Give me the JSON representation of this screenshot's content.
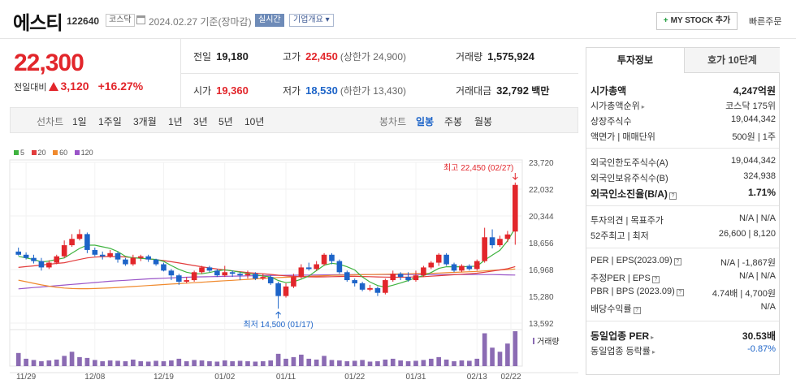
{
  "header": {
    "stock_name": "에스티",
    "code": "122640",
    "market": "코스닥",
    "date_label": "2024.02.27  기준(장마감)",
    "live_button": "실시간",
    "corp_button": "기업개요 ▾",
    "mystock_plus": "+",
    "mystock_button": "MY STOCK 추가",
    "quick_order": "빠른주문"
  },
  "price": {
    "current": "22,300",
    "change_label": "전일대비",
    "change": "3,120",
    "change_pct": "+16.27%"
  },
  "stats": {
    "prev_close_label": "전일",
    "prev_close": "19,180",
    "high_label": "고가",
    "high": "22,450",
    "upper_limit": "(상한가 24,900)",
    "volume_label": "거래량",
    "volume": "1,575,924",
    "open_label": "시가",
    "open": "19,360",
    "low_label": "저가",
    "low": "18,530",
    "lower_limit": "(하한가 13,430)",
    "amount_label": "거래대금",
    "amount": "32,792",
    "amount_unit": "백만"
  },
  "toolbar": {
    "line_chart_label": "선차트",
    "line_periods": [
      "1일",
      "1주일",
      "3개월",
      "1년",
      "3년",
      "5년",
      "10년"
    ],
    "candle_label": "봉차트",
    "candle_periods": [
      "일봉",
      "주봉",
      "월봉"
    ],
    "candle_selected": "일봉"
  },
  "legend": [
    {
      "label": "5",
      "color": "#3fb33f"
    },
    {
      "label": "20",
      "color": "#e23c3c"
    },
    {
      "label": "60",
      "color": "#f08a2e"
    },
    {
      "label": "120",
      "color": "#9a55c8"
    }
  ],
  "chart_data": {
    "type": "candlestick",
    "y_ticks": [
      "23,720",
      "22,032",
      "20,344",
      "18,656",
      "16,968",
      "15,280",
      "13,592"
    ],
    "x_ticks": [
      "11/29",
      "12/08",
      "12/19",
      "01/02",
      "01/11",
      "01/22",
      "01/31",
      "02/13",
      "02/22"
    ],
    "ylim": [
      13592,
      23720
    ],
    "high_annotation": "최고 22,450 (02/27)",
    "low_annotation": "최저 14,500 (01/17)",
    "volume_label": "거래량",
    "up_color": "#e2262b",
    "down_color": "#1d64c8",
    "candles": [
      [
        18100,
        17900,
        18350,
        17850
      ],
      [
        17900,
        17700,
        18050,
        17600
      ],
      [
        17700,
        17500,
        17900,
        17350
      ],
      [
        17500,
        17100,
        17700,
        16900
      ],
      [
        17100,
        17400,
        17550,
        17000
      ],
      [
        17400,
        17800,
        17900,
        17300
      ],
      [
        17800,
        18500,
        18800,
        17700
      ],
      [
        18500,
        18900,
        19200,
        18400
      ],
      [
        18900,
        19200,
        19500,
        18800
      ],
      [
        19200,
        18200,
        19300,
        18000
      ],
      [
        18200,
        17900,
        18350,
        17800
      ],
      [
        17900,
        17800,
        18100,
        17600
      ],
      [
        17800,
        18000,
        18200,
        17700
      ],
      [
        18000,
        17600,
        18100,
        17400
      ],
      [
        17600,
        17300,
        17700,
        17200
      ],
      [
        17300,
        17700,
        17900,
        17200
      ],
      [
        17700,
        17800,
        17900,
        17500
      ],
      [
        17800,
        17600,
        17900,
        17450
      ],
      [
        17600,
        17300,
        17650,
        17200
      ],
      [
        17300,
        16900,
        17400,
        16850
      ],
      [
        16900,
        16600,
        17000,
        16300
      ],
      [
        16600,
        16200,
        16700,
        16000
      ],
      [
        16200,
        16300,
        16500,
        16100
      ],
      [
        16300,
        16800,
        16900,
        16200
      ],
      [
        16800,
        17100,
        17200,
        16700
      ],
      [
        17100,
        16900,
        17200,
        16800
      ],
      [
        16900,
        16600,
        17000,
        16500
      ],
      [
        16600,
        16800,
        17200,
        16500
      ],
      [
        16800,
        16700,
        16900,
        16500
      ],
      [
        16700,
        16600,
        16800,
        16300
      ],
      [
        16600,
        16700,
        16900,
        16400
      ],
      [
        16700,
        16400,
        16800,
        16300
      ],
      [
        16400,
        16500,
        16700,
        16300
      ],
      [
        16500,
        16100,
        16600,
        16000
      ],
      [
        16100,
        15300,
        16200,
        14500
      ],
      [
        15300,
        15900,
        16100,
        15200
      ],
      [
        15900,
        16500,
        16700,
        15800
      ],
      [
        16500,
        17100,
        17300,
        16400
      ],
      [
        17100,
        17000,
        17400,
        16900
      ],
      [
        17000,
        17300,
        17500,
        16900
      ],
      [
        17300,
        17900,
        18000,
        17200
      ],
      [
        17900,
        17500,
        18000,
        17300
      ],
      [
        17500,
        16800,
        17600,
        16700
      ],
      [
        16800,
        16300,
        16900,
        16200
      ],
      [
        16300,
        16100,
        16400,
        15900
      ],
      [
        16100,
        15700,
        16200,
        15600
      ],
      [
        15700,
        15800,
        16000,
        15600
      ],
      [
        15800,
        15500,
        15900,
        15300
      ],
      [
        15500,
        16300,
        16400,
        15400
      ],
      [
        16300,
        16700,
        16900,
        16200
      ],
      [
        16700,
        16500,
        16800,
        16300
      ],
      [
        16500,
        16300,
        16800,
        16200
      ],
      [
        16300,
        16600,
        16900,
        16200
      ],
      [
        16600,
        17100,
        17200,
        16500
      ],
      [
        17100,
        17400,
        17500,
        17000
      ],
      [
        17400,
        17900,
        18000,
        17200
      ],
      [
        17900,
        17300,
        18000,
        17200
      ],
      [
        17300,
        16900,
        17400,
        16800
      ],
      [
        16900,
        17200,
        17300,
        16800
      ],
      [
        17200,
        17000,
        17300,
        16900
      ],
      [
        17000,
        17500,
        17600,
        16900
      ],
      [
        17500,
        19000,
        19600,
        17400
      ],
      [
        19000,
        18500,
        19500,
        18300
      ],
      [
        18500,
        18900,
        19100,
        18400
      ],
      [
        18900,
        19180,
        19400,
        18700
      ],
      [
        19360,
        22300,
        22450,
        18530
      ]
    ],
    "volumes": [
      0.32,
      0.18,
      0.15,
      0.12,
      0.14,
      0.16,
      0.25,
      0.35,
      0.22,
      0.2,
      0.15,
      0.12,
      0.14,
      0.13,
      0.12,
      0.16,
      0.12,
      0.11,
      0.13,
      0.12,
      0.14,
      0.18,
      0.12,
      0.15,
      0.14,
      0.12,
      0.11,
      0.14,
      0.12,
      0.13,
      0.12,
      0.11,
      0.12,
      0.14,
      0.3,
      0.18,
      0.22,
      0.28,
      0.18,
      0.16,
      0.25,
      0.15,
      0.14,
      0.12,
      0.13,
      0.15,
      0.11,
      0.12,
      0.16,
      0.18,
      0.14,
      0.12,
      0.13,
      0.15,
      0.18,
      0.22,
      0.16,
      0.12,
      0.14,
      0.13,
      0.18,
      0.8,
      0.45,
      0.35,
      0.55,
      0.85
    ],
    "ma5": [
      17800,
      17700,
      17600,
      17450,
      17500,
      17600,
      17700,
      18000,
      18300,
      18500,
      18500,
      18400,
      18300,
      18100,
      17800,
      17700,
      17680,
      17640,
      17600,
      17480,
      17220,
      16980,
      16800,
      16700,
      16700,
      16780,
      16880,
      16950,
      16880,
      16800,
      16720,
      16640,
      16560,
      16500,
      16280,
      16140,
      16200,
      16360,
      16560,
      16900,
      17240,
      17360,
      17300,
      17140,
      16940,
      16500,
      16180,
      15960,
      15860,
      15980,
      16120,
      16280,
      16460,
      16580,
      16780,
      17040,
      17140,
      17140,
      17140,
      17160,
      17180,
      17560,
      17880,
      18180,
      18780,
      19580
    ],
    "ma20": [
      17100,
      17150,
      17200,
      17250,
      17300,
      17350,
      17400,
      17500,
      17600,
      17700,
      17750,
      17780,
      17790,
      17780,
      17760,
      17720,
      17680,
      17640,
      17590,
      17530,
      17460,
      17380,
      17300,
      17220,
      17140,
      17070,
      17000,
      16940,
      16880,
      16830,
      16780,
      16740,
      16700,
      16660,
      16610,
      16570,
      16540,
      16520,
      16510,
      16500,
      16510,
      16520,
      16530,
      16540,
      16540,
      16530,
      16520,
      16500,
      16490,
      16480,
      16480,
      16490,
      16500,
      16520,
      16550,
      16580,
      16610,
      16640,
      16670,
      16700,
      16740,
      16800,
      16870,
      16940,
      17020,
      17150
    ],
    "ma60": [
      16300,
      16200,
      16100,
      16000,
      15920,
      15850,
      15800,
      15770,
      15760,
      15760,
      15770,
      15790,
      15810,
      15840,
      15870,
      15900,
      15930,
      15960,
      15990,
      16020,
      16050,
      16080,
      16110,
      16140,
      16170,
      16200,
      16230,
      16260,
      16290,
      16320,
      16350,
      16380,
      16410,
      16440,
      16460,
      16480,
      16500,
      16520,
      16540,
      16560,
      16580,
      16600,
      16610,
      16620,
      16630,
      16640,
      16650,
      16660,
      16670,
      16680,
      16690,
      16700,
      16710,
      16720,
      16730,
      16750,
      16770,
      16790,
      16810,
      16830,
      16850,
      16880,
      16910,
      16940,
      16970,
      17000
    ],
    "ma120": [
      15750,
      15790,
      15830,
      15870,
      15910,
      15950,
      15990,
      16030,
      16070,
      16110,
      16150,
      16190,
      16230,
      16260,
      16290,
      16320,
      16350,
      16380,
      16400,
      16420,
      16440,
      16460,
      16480,
      16500,
      16510,
      16520,
      16530,
      16540,
      16550,
      16560,
      16570,
      16580,
      16590,
      16595,
      16600,
      16605,
      16610,
      16615,
      16620,
      16625,
      16630,
      16635,
      16640,
      16645,
      16650,
      16650,
      16650,
      16650,
      16650,
      16650,
      16650,
      16650,
      16650,
      16650,
      16650,
      16650,
      16650,
      16650,
      16650,
      16650,
      16650,
      16650,
      16650,
      16640,
      16630,
      16620
    ]
  },
  "panel": {
    "tab_active": "투자정보",
    "tab_inactive": "호가 10단계",
    "market_cap_label": "시가총액",
    "market_cap": "4,247억원",
    "rank_label": "시가총액순위",
    "rank": "코스닥 175위",
    "shares_label": "상장주식수",
    "shares": "19,044,342",
    "par_label": "액면가 | 매매단위",
    "par": "500원 | 1주",
    "foreign_limit_label": "외국인한도주식수(A)",
    "foreign_limit": "19,044,342",
    "foreign_hold_label": "외국인보유주식수(B)",
    "foreign_hold": "324,938",
    "foreign_ratio_label": "외국인소진율(B/A)",
    "foreign_ratio": "1.71%",
    "opinion_label": "투자의견 | 목표주가",
    "opinion": "N/A | N/A",
    "w52_label": "52주최고 | 최저",
    "w52": "26,600 | 8,120",
    "per_label": "PER | EPS(2023.09)",
    "per": "N/A | -1,867원",
    "est_per_label": "추정PER | EPS",
    "est_per": "N/A | N/A",
    "pbr_label": "PBR | BPS (2023.09)",
    "pbr": "4.74배 | 4,700원",
    "div_label": "배당수익률",
    "div": "N/A",
    "sector_per_label": "동일업종 PER",
    "sector_per": "30.53배",
    "sector_chg_label": "동일업종 등락률",
    "sector_chg": "-0.87%"
  }
}
